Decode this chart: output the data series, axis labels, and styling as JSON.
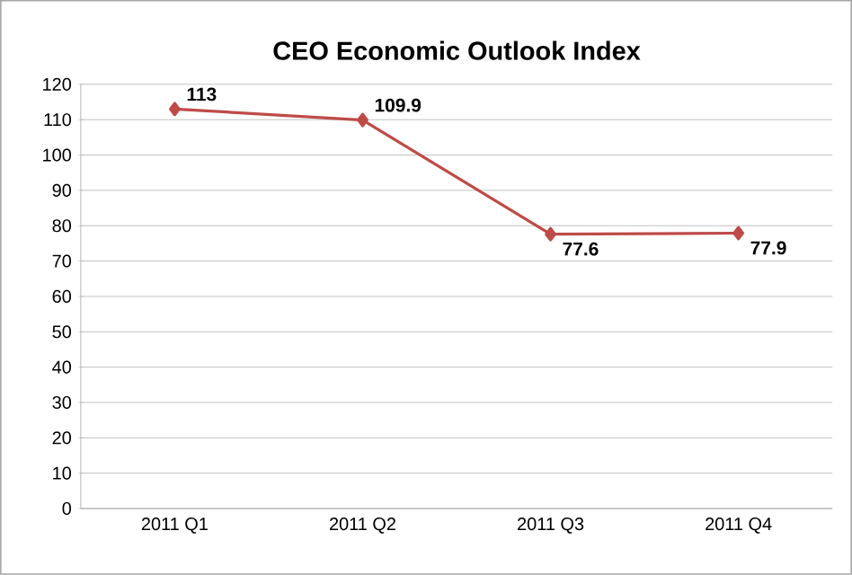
{
  "chart_data": {
    "type": "line",
    "title": "CEO Economic Outlook Index",
    "categories": [
      "2011 Q1",
      "2011 Q2",
      "2011 Q3",
      "2011 Q4"
    ],
    "values": [
      113,
      109.9,
      77.6,
      77.9
    ],
    "color": "#be4b48",
    "ylim": [
      0,
      120
    ],
    "yticks": [
      0,
      10,
      20,
      30,
      40,
      50,
      60,
      70,
      80,
      90,
      100,
      110,
      120
    ],
    "grid": "y",
    "marker": "diamond",
    "data_labels": true
  }
}
